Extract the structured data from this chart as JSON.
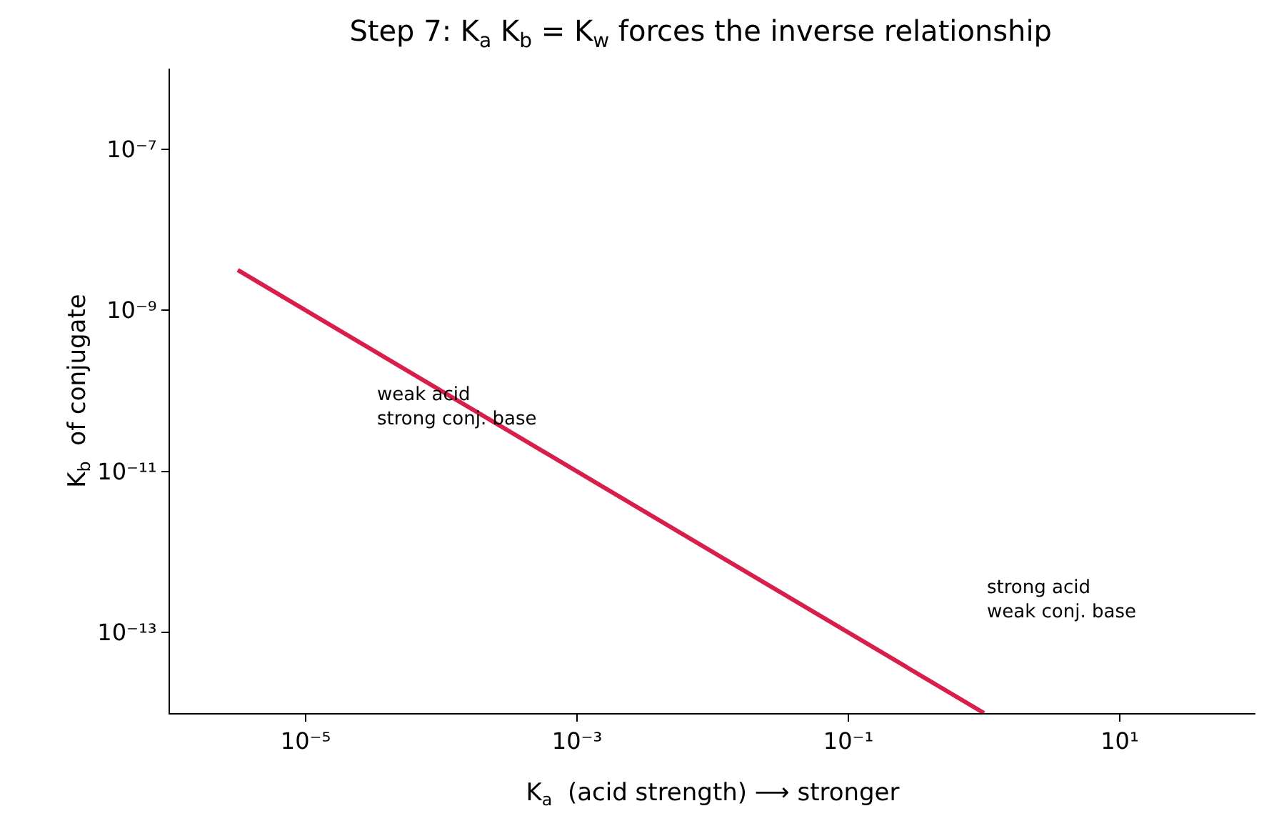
{
  "chart_data": {
    "type": "line",
    "title": "Step 7: K$_{a}$ K$_{b}$ = K$_{w}$ forces the inverse relationship",
    "xlabel": "K$_{a}$  (acid strength) ⟶ stronger",
    "ylabel": "K$_{b}$  of conjugate",
    "x": [
      3.16e-06,
      1
    ],
    "series": [
      {
        "color": "#d81e4a",
        "values": [
          3.16e-09,
          1e-14
        ]
      }
    ],
    "log": "xy",
    "xlim": [
      1e-06,
      100
    ],
    "ylim": [
      1e-14,
      1e-06
    ],
    "xticks": [
      {
        "value": 1e-05,
        "label": "10⁻⁵"
      },
      {
        "value": 0.001,
        "label": "10⁻³"
      },
      {
        "value": 0.1,
        "label": "10⁻¹"
      },
      {
        "value": 10,
        "label": "10¹"
      }
    ],
    "yticks": [
      {
        "value": 1e-13,
        "label": "10⁻¹³"
      },
      {
        "value": 1e-11,
        "label": "10⁻¹¹"
      },
      {
        "value": 1e-09,
        "label": "10⁻⁹"
      },
      {
        "value": 1e-07,
        "label": "10⁻⁷"
      }
    ],
    "annotations": [
      "weak acid\nstrong conj. base",
      "strong acid\nweak conj. base"
    ],
    "grid": false,
    "marker": "none",
    "line_style": "solid"
  }
}
